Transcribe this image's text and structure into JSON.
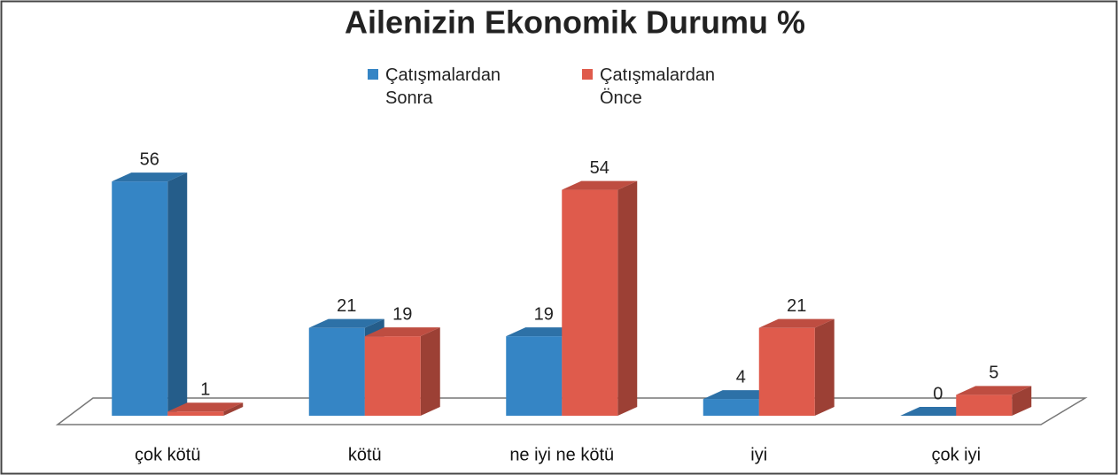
{
  "chart_data": {
    "type": "bar3d",
    "title": "Ailenizin Ekonomik Durumu %",
    "categories": [
      "çok kötü",
      "kötü",
      "ne iyi ne kötü",
      "iyi",
      "çok iyi"
    ],
    "series": [
      {
        "name": "Çatışmalardan Sonra",
        "color": "#3585c5",
        "values": [
          56,
          21,
          19,
          4,
          0
        ]
      },
      {
        "name": "Çatışmalardan Önce",
        "color": "#df5b4c",
        "values": [
          1,
          19,
          54,
          21,
          5
        ]
      }
    ]
  }
}
